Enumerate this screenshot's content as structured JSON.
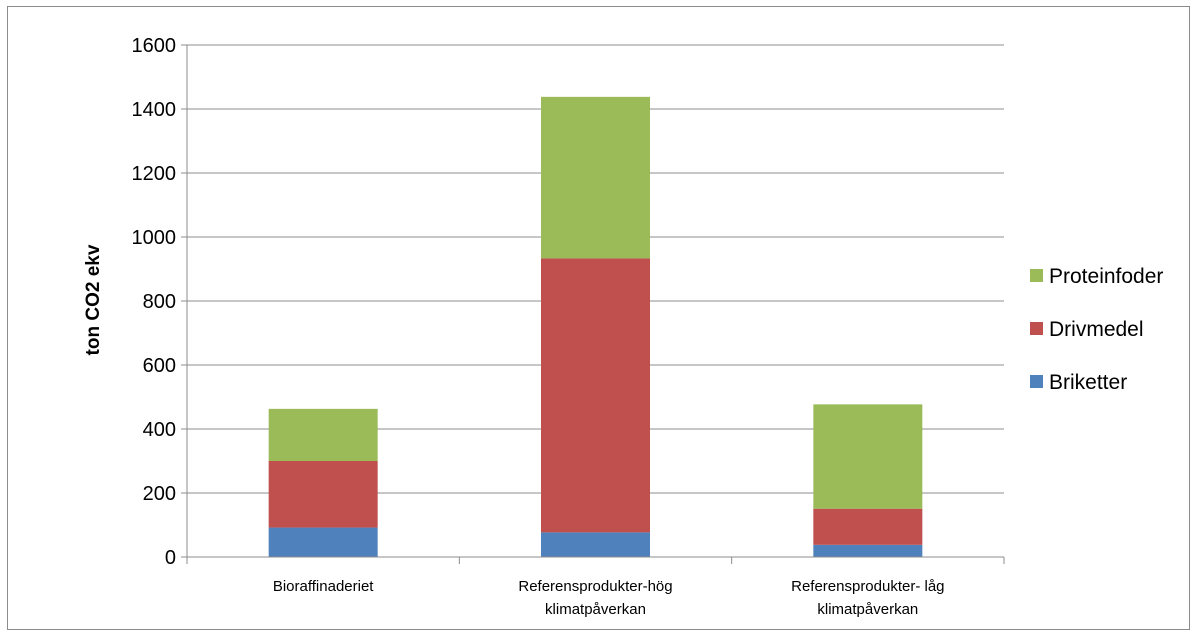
{
  "chart_data": {
    "type": "bar",
    "stacked": true,
    "title": "",
    "xlabel": "",
    "ylabel": "ton CO2 ekv",
    "ylim": [
      0,
      1600
    ],
    "yticks": [
      "0",
      "200",
      "400",
      "600",
      "800",
      "1000",
      "1200",
      "1400",
      "1600"
    ],
    "grid": true,
    "legend_position": "right",
    "categories": [
      [
        "Bioraffinaderiet"
      ],
      [
        "Referensprodukter-hög",
        "klimatpåverkan"
      ],
      [
        "Referensprodukter- låg",
        "klimatpåverkan"
      ]
    ],
    "series": [
      {
        "name": "Briketter",
        "color": "#4f81bd",
        "values": [
          92,
          77,
          38
        ]
      },
      {
        "name": "Drivmedel",
        "color": "#c0504d",
        "values": [
          208,
          856,
          113
        ]
      },
      {
        "name": "Proteinfoder",
        "color": "#9bbb59",
        "values": [
          163,
          505,
          326
        ]
      }
    ]
  }
}
